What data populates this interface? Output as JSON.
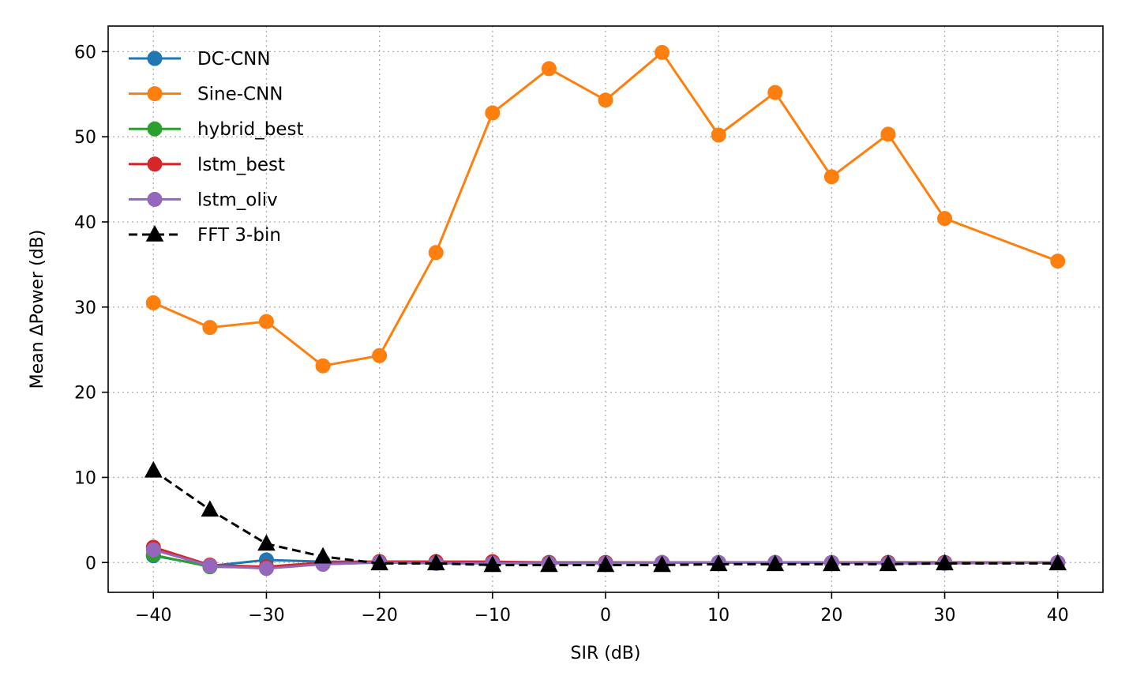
{
  "chart_data": {
    "type": "line",
    "title": "",
    "xlabel": "SIR (dB)",
    "ylabel": "Mean ΔPower (dB)",
    "xlim": [
      -44,
      44
    ],
    "ylim": [
      -3.5,
      63
    ],
    "grid": true,
    "legend_position": "top-left",
    "x": [
      -40,
      -35,
      -30,
      -25,
      -20,
      -15,
      -10,
      -5,
      0,
      5,
      10,
      15,
      20,
      25,
      30,
      40
    ],
    "x_ticks": [
      -40,
      -30,
      -20,
      -10,
      0,
      10,
      20,
      30,
      40
    ],
    "x_tick_labels": [
      "−40",
      "−30",
      "−20",
      "−10",
      "0",
      "10",
      "20",
      "30",
      "40"
    ],
    "y_ticks": [
      0,
      10,
      20,
      30,
      40,
      50,
      60
    ],
    "y_tick_labels": [
      "0",
      "10",
      "20",
      "30",
      "40",
      "50",
      "60"
    ],
    "series": [
      {
        "name": "DC-CNN",
        "color": "#1f77b4",
        "marker": "circle",
        "line": "solid",
        "values": [
          0.8,
          -0.4,
          0.3,
          0.1,
          0.1,
          0.1,
          0.0,
          0.0,
          0.0,
          0.0,
          0.0,
          0.0,
          0.0,
          0.0,
          0.0,
          0.0
        ]
      },
      {
        "name": "Sine-CNN",
        "color": "#ff7f0e",
        "marker": "circle",
        "line": "solid",
        "values": [
          30.5,
          27.6,
          28.3,
          23.1,
          24.3,
          36.4,
          52.8,
          58.0,
          54.3,
          59.9,
          50.2,
          55.2,
          45.3,
          50.3,
          40.4,
          35.4
        ]
      },
      {
        "name": "hybrid_best",
        "color": "#2ca02c",
        "marker": "circle",
        "line": "solid",
        "values": [
          0.9,
          -0.5,
          -0.6,
          -0.2,
          0.0,
          0.0,
          0.0,
          0.0,
          0.0,
          0.0,
          0.0,
          0.0,
          0.0,
          0.0,
          0.0,
          0.0
        ]
      },
      {
        "name": "lstm_best",
        "color": "#d62728",
        "marker": "circle",
        "line": "solid",
        "values": [
          1.8,
          -0.3,
          -0.5,
          0.0,
          0.1,
          0.1,
          0.1,
          0.0,
          0.0,
          0.0,
          0.0,
          0.0,
          0.0,
          0.0,
          0.0,
          0.0
        ]
      },
      {
        "name": "lstm_oliv",
        "color": "#9467bd",
        "marker": "circle",
        "line": "solid",
        "values": [
          1.5,
          -0.4,
          -0.7,
          -0.2,
          0.0,
          -0.1,
          -0.1,
          -0.1,
          -0.1,
          0.0,
          0.0,
          0.0,
          0.0,
          -0.1,
          -0.1,
          0.0
        ]
      },
      {
        "name": "FFT 3-bin",
        "color": "#000000",
        "marker": "triangle",
        "line": "dashed",
        "values": [
          10.8,
          6.2,
          2.2,
          0.7,
          -0.1,
          -0.1,
          -0.3,
          -0.3,
          -0.3,
          -0.3,
          -0.2,
          -0.2,
          -0.2,
          -0.2,
          -0.1,
          -0.1
        ]
      }
    ]
  }
}
